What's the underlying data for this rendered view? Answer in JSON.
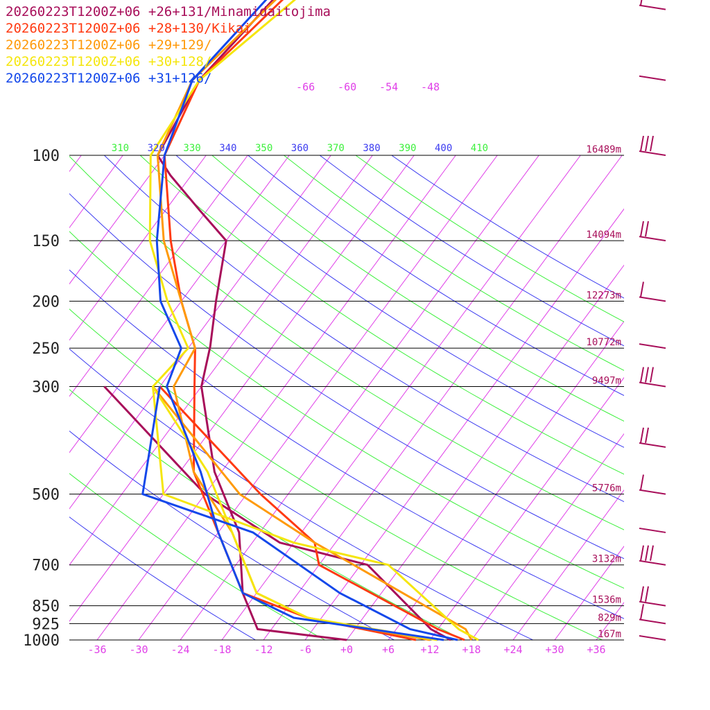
{
  "legend": [
    {
      "label": "20260223T1200Z+06 +26+131/Minamidaitojima",
      "color": "#a80f5a"
    },
    {
      "label": "20260223T1200Z+06 +28+130/Kikai",
      "color": "#ff3a12"
    },
    {
      "label": "20260223T1200Z+06 +29+129/",
      "color": "#ff9a0a"
    },
    {
      "label": "20260223T1200Z+06 +30+128/",
      "color": "#f5e60f"
    },
    {
      "label": "20260223T1200Z+06 +31+126/",
      "color": "#1448ea"
    }
  ],
  "colors": {
    "isobar": "#000000",
    "isotherm": "#e040e8",
    "theta": "#3c3cf0",
    "theta_alt": "#3cf03c",
    "label": "#e040e8",
    "height_label": "#a80f5a",
    "wind_barb": "#a80f5a"
  },
  "chart_data": {
    "type": "line",
    "title": "",
    "xlabel": "",
    "ylabel": "",
    "pressure_levels": [
      "100",
      "150",
      "200",
      "250",
      "300",
      "500",
      "700",
      "850",
      "925",
      "1000"
    ],
    "heights": [
      "16489m",
      "14094m",
      "12273m",
      "10772m",
      "9497m",
      "5776m",
      "3132m",
      "1536m",
      "829m",
      "167m"
    ],
    "x_ticks": [
      "-36",
      "-30",
      "-24",
      "-18",
      "-12",
      "-6",
      "+0",
      "+6",
      "+12",
      "+18",
      "+24",
      "+30",
      "+36"
    ],
    "skewed_isotherm_labels": [
      "-66",
      "-60",
      "-54",
      "-48"
    ],
    "theta_labels": [
      "310",
      "320",
      "330",
      "340",
      "350",
      "360",
      "370",
      "380",
      "390",
      "400",
      "410"
    ],
    "xlim": [
      -40,
      40
    ],
    "ylim_hpa": [
      1000,
      100
    ],
    "series": [
      {
        "key": "minamidaitojima",
        "color": "#a80f5a",
        "type": "temperature",
        "points": [
          [
            0,
            1000
          ],
          [
            -14,
            950
          ],
          [
            -20,
            800
          ],
          [
            -27,
            600
          ],
          [
            -37,
            450
          ],
          [
            -48,
            300
          ],
          [
            -51,
            248
          ],
          [
            -55,
            200
          ],
          [
            -60,
            150
          ],
          [
            -67,
            130
          ],
          [
            -75,
            110
          ],
          [
            -79,
            100
          ],
          [
            -81,
            70
          ],
          [
            -78,
            40
          ],
          [
            -74,
            25
          ],
          [
            -72,
            20
          ]
        ]
      },
      {
        "key": "minamidaitojima_dew",
        "color": "#a80f5a",
        "type": "dewpoint",
        "points": [
          [
            15,
            1000
          ],
          [
            11,
            950
          ],
          [
            -5,
            700
          ],
          [
            -20,
            630
          ],
          [
            -36,
            500
          ],
          [
            -62,
            300
          ]
        ]
      },
      {
        "key": "kikai",
        "color": "#ff3a12",
        "type": "temperature",
        "points": [
          [
            10,
            1000
          ],
          [
            -8,
            900
          ],
          [
            -20,
            800
          ],
          [
            -30,
            600
          ],
          [
            -40,
            450
          ],
          [
            -49,
            300
          ],
          [
            -53,
            250
          ],
          [
            -60,
            200
          ],
          [
            -68,
            150
          ],
          [
            -78,
            100
          ],
          [
            -81,
            70
          ],
          [
            -76,
            40
          ]
        ]
      },
      {
        "key": "kikai_dew",
        "color": "#ff3a12",
        "type": "dewpoint",
        "points": [
          [
            17,
            1000
          ],
          [
            12,
            950
          ],
          [
            -12,
            700
          ],
          [
            -15,
            630
          ],
          [
            -28,
            500
          ],
          [
            -54,
            300
          ]
        ]
      },
      {
        "key": "kikai_29",
        "color": "#ff9a0a",
        "type": "temperature",
        "points": [
          [
            12,
            1000
          ],
          [
            -8,
            900
          ],
          [
            -18,
            800
          ],
          [
            -28,
            600
          ],
          [
            -40,
            450
          ],
          [
            -52,
            300
          ],
          [
            -53,
            250
          ],
          [
            -60,
            200
          ],
          [
            -69,
            150
          ],
          [
            -79,
            100
          ],
          [
            -82,
            70
          ],
          [
            -77,
            40
          ]
        ]
      },
      {
        "key": "kikai_29_dew",
        "color": "#ff9a0a",
        "type": "dewpoint",
        "points": [
          [
            18,
            1000
          ],
          [
            16,
            950
          ],
          [
            -7,
            700
          ],
          [
            -15,
            630
          ],
          [
            -31,
            500
          ],
          [
            -55,
            300
          ]
        ]
      },
      {
        "key": "kikai_30",
        "color": "#f5e60f",
        "type": "temperature",
        "points": [
          [
            13,
            1000
          ],
          [
            -8,
            900
          ],
          [
            -18,
            800
          ],
          [
            -28,
            600
          ],
          [
            -38,
            450
          ],
          [
            -55,
            300
          ],
          [
            -54,
            250
          ],
          [
            -62,
            200
          ],
          [
            -71,
            150
          ],
          [
            -80,
            100
          ],
          [
            -81,
            70
          ],
          [
            -75,
            45
          ]
        ]
      },
      {
        "key": "kikai_30_dew",
        "color": "#f5e60f",
        "type": "dewpoint",
        "points": [
          [
            19,
            1000
          ],
          [
            15,
            950
          ],
          [
            -2,
            700
          ],
          [
            -18,
            630
          ],
          [
            -42,
            500
          ],
          [
            -55,
            300
          ]
        ]
      },
      {
        "key": "kikai_31",
        "color": "#1448ea",
        "type": "temperature",
        "points": [
          [
            14,
            1000
          ],
          [
            -10,
            900
          ],
          [
            -20,
            800
          ],
          [
            -30,
            600
          ],
          [
            -39,
            450
          ],
          [
            -53,
            300
          ],
          [
            -55,
            250
          ],
          [
            -63,
            200
          ],
          [
            -70,
            150
          ],
          [
            -78,
            100
          ],
          [
            -82,
            70
          ],
          [
            -79,
            40
          ]
        ]
      },
      {
        "key": "kikai_31_dew",
        "color": "#1448ea",
        "type": "dewpoint",
        "points": [
          [
            16,
            1000
          ],
          [
            8,
            950
          ],
          [
            -6,
            800
          ],
          [
            -25,
            600
          ],
          [
            -45,
            500
          ],
          [
            -54,
            300
          ]
        ]
      }
    ],
    "grid": true
  }
}
